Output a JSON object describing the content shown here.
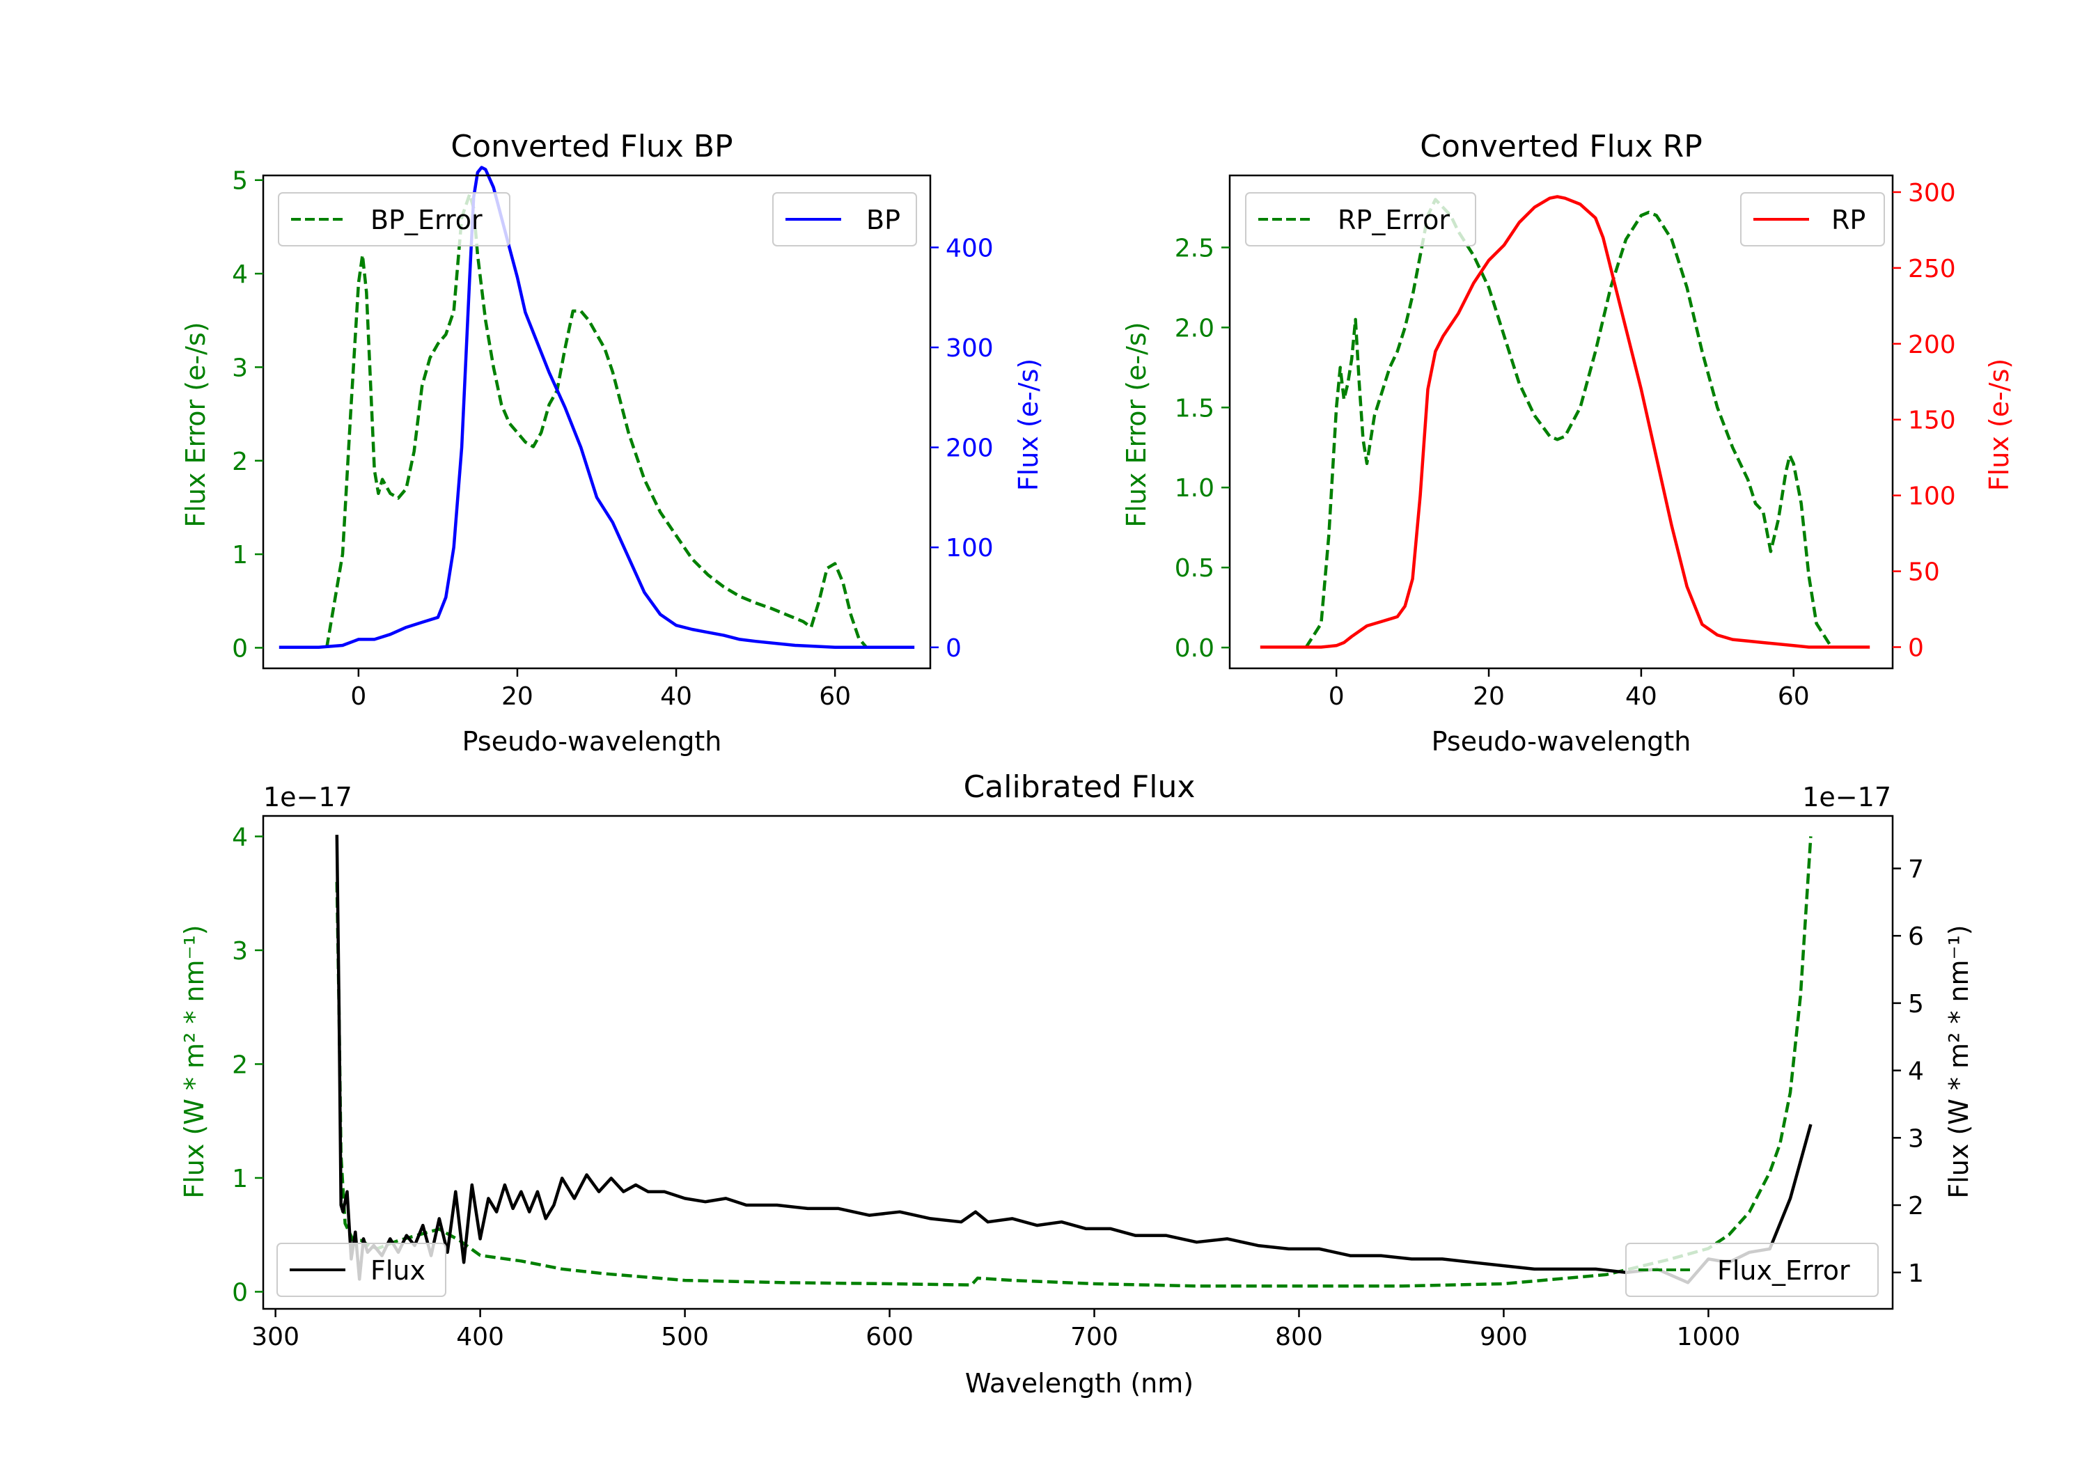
{
  "figure": {
    "background": "#ffffff"
  },
  "chart_data": [
    {
      "id": "bp",
      "type": "line",
      "title": "Converted Flux BP",
      "xlabel": "Pseudo-wavelength",
      "ylabel_left": "Flux Error (e-/s)",
      "ylabel_right": "Flux (e-/s)",
      "xlim": [
        -12,
        72
      ],
      "ylim_left": [
        -0.22,
        5.05
      ],
      "ylim_right": [
        -21,
        472
      ],
      "xticks": [
        0,
        20,
        40,
        60
      ],
      "yticks_left": [
        0,
        1,
        2,
        3,
        4,
        5
      ],
      "yticks_right": [
        0,
        100,
        200,
        300,
        400
      ],
      "left_axis_color": "#008000",
      "right_axis_color": "#0000ff",
      "series": [
        {
          "name": "BP_Error",
          "axis": "left",
          "color": "#008000",
          "dash": true,
          "x": [
            -4,
            -2,
            -1,
            0,
            0.5,
            1,
            2,
            2.5,
            3,
            4,
            5,
            6,
            7,
            8,
            9,
            10,
            11,
            12,
            13,
            14,
            14.5,
            15,
            16,
            17,
            18,
            19,
            20,
            21,
            22,
            23,
            24,
            25,
            26,
            27,
            28,
            29,
            30,
            31,
            32,
            34,
            36,
            38,
            40,
            42,
            44,
            46,
            48,
            50,
            52,
            54,
            56,
            57,
            58,
            59,
            60,
            61,
            62,
            63,
            64
          ],
          "y": [
            0,
            1.0,
            2.5,
            3.9,
            4.2,
            3.8,
            1.9,
            1.65,
            1.8,
            1.65,
            1.6,
            1.7,
            2.1,
            2.8,
            3.1,
            3.25,
            3.35,
            3.6,
            4.6,
            4.85,
            4.7,
            4.2,
            3.5,
            3.0,
            2.6,
            2.4,
            2.3,
            2.2,
            2.15,
            2.3,
            2.6,
            2.75,
            3.2,
            3.6,
            3.6,
            3.5,
            3.35,
            3.2,
            2.95,
            2.3,
            1.8,
            1.45,
            1.2,
            0.95,
            0.78,
            0.65,
            0.55,
            0.48,
            0.42,
            0.35,
            0.28,
            0.22,
            0.5,
            0.85,
            0.9,
            0.7,
            0.35,
            0.1,
            0
          ]
        },
        {
          "name": "BP",
          "axis": "right",
          "color": "#0000ff",
          "dash": false,
          "x": [
            -10,
            -5,
            -2,
            0,
            2,
            4,
            6,
            8,
            10,
            11,
            12,
            13,
            14,
            14.5,
            15,
            15.5,
            16,
            17,
            18,
            19,
            20,
            21,
            22,
            24,
            26,
            28,
            30,
            32,
            34,
            36,
            38,
            40,
            42,
            44,
            46,
            48,
            50,
            55,
            60,
            65,
            70
          ],
          "y": [
            0,
            0,
            2,
            8,
            8,
            13,
            20,
            25,
            30,
            50,
            100,
            200,
            370,
            450,
            475,
            480,
            478,
            460,
            430,
            400,
            370,
            335,
            315,
            275,
            240,
            200,
            150,
            125,
            90,
            55,
            33,
            22,
            18,
            15,
            12,
            8,
            6,
            2,
            0,
            0,
            0
          ]
        }
      ],
      "legend": [
        {
          "label": "BP_Error",
          "position": "upper-left"
        },
        {
          "label": "BP",
          "position": "upper-right"
        }
      ]
    },
    {
      "id": "rp",
      "type": "line",
      "title": "Converted Flux RP",
      "xlabel": "Pseudo-wavelength",
      "ylabel_left": "Flux Error (e-/s)",
      "ylabel_right": "Flux (e-/s)",
      "xlim": [
        -14,
        73
      ],
      "ylim_left": [
        -0.13,
        2.95
      ],
      "ylim_right": [
        -14,
        311
      ],
      "xticks": [
        0,
        20,
        40,
        60
      ],
      "yticks_left": [
        0.0,
        0.5,
        1.0,
        1.5,
        2.0,
        2.5
      ],
      "yticks_right": [
        0,
        50,
        100,
        150,
        200,
        250,
        300
      ],
      "left_axis_color": "#008000",
      "right_axis_color": "#ff0000",
      "series": [
        {
          "name": "RP_Error",
          "axis": "left",
          "color": "#008000",
          "dash": true,
          "x": [
            -4,
            -2,
            -1,
            0,
            0.5,
            1,
            1.5,
            2,
            2.5,
            3,
            3.5,
            4,
            5,
            6,
            7,
            8,
            9,
            10,
            11,
            12,
            13,
            14,
            15,
            16,
            18,
            20,
            22,
            24,
            26,
            28,
            29,
            30,
            32,
            34,
            36,
            38,
            40,
            41,
            42,
            44,
            46,
            48,
            50,
            52,
            54,
            55,
            56,
            57,
            58,
            59,
            59.5,
            60,
            61,
            62,
            63,
            65
          ],
          "y": [
            0,
            0.15,
            0.7,
            1.5,
            1.75,
            1.55,
            1.65,
            1.8,
            2.05,
            1.65,
            1.3,
            1.15,
            1.45,
            1.6,
            1.75,
            1.85,
            2.0,
            2.2,
            2.45,
            2.7,
            2.8,
            2.75,
            2.7,
            2.6,
            2.45,
            2.25,
            1.95,
            1.65,
            1.45,
            1.32,
            1.3,
            1.32,
            1.5,
            1.85,
            2.25,
            2.55,
            2.7,
            2.72,
            2.7,
            2.55,
            2.25,
            1.85,
            1.5,
            1.25,
            1.05,
            0.9,
            0.85,
            0.6,
            0.8,
            1.1,
            1.2,
            1.15,
            0.9,
            0.45,
            0.15,
            0
          ]
        },
        {
          "name": "RP",
          "axis": "right",
          "color": "#ff0000",
          "dash": false,
          "x": [
            -10,
            -2,
            0,
            1,
            2,
            4,
            6,
            8,
            9,
            10,
            11,
            11.5,
            12,
            13,
            14,
            16,
            18,
            20,
            22,
            24,
            26,
            28,
            29,
            30,
            32,
            34,
            35,
            36,
            38,
            40,
            42,
            44,
            46,
            48,
            50,
            52,
            54,
            56,
            60,
            62,
            64,
            70
          ],
          "y": [
            0,
            0,
            1,
            3,
            7,
            14,
            17,
            20,
            27,
            45,
            100,
            135,
            170,
            195,
            205,
            220,
            240,
            255,
            265,
            280,
            290,
            296,
            297,
            296,
            292,
            283,
            270,
            250,
            210,
            170,
            125,
            80,
            40,
            15,
            8,
            5,
            4,
            3,
            1,
            0,
            0,
            0
          ]
        }
      ],
      "legend": [
        {
          "label": "RP_Error",
          "position": "upper-left"
        },
        {
          "label": "RP",
          "position": "upper-right"
        }
      ]
    },
    {
      "id": "cal",
      "type": "line",
      "title": "Calibrated Flux",
      "xlabel": "Wavelength (nm)",
      "ylabel_left": "Flux (W * m² * nm⁻¹)",
      "ylabel_right": "Flux (W * m² * nm⁻¹)",
      "scale_left": "1e−17",
      "scale_right": "1e−17",
      "xlim": [
        294,
        1090
      ],
      "ylim_left": [
        -0.15,
        4.18
      ],
      "ylim_right": [
        0.46,
        7.78
      ],
      "xticks": [
        300,
        400,
        500,
        600,
        700,
        800,
        900,
        1000
      ],
      "yticks_left": [
        0,
        1,
        2,
        3,
        4
      ],
      "yticks_right": [
        1,
        2,
        3,
        4,
        5,
        6,
        7
      ],
      "left_axis_color": "#008000",
      "right_axis_color": "#000000",
      "series": [
        {
          "name": "Flux_Error",
          "axis": "left",
          "color": "#008000",
          "dash": true,
          "x": [
            330,
            331,
            332,
            334,
            338,
            342,
            346,
            350,
            360,
            370,
            380,
            390,
            400,
            420,
            440,
            460,
            500,
            550,
            600,
            640,
            643,
            660,
            700,
            750,
            800,
            850,
            900,
            950,
            980,
            1000,
            1010,
            1020,
            1030,
            1035,
            1040,
            1045,
            1050
          ],
          "y": [
            3.6,
            2.5,
            1.2,
            0.6,
            0.45,
            0.45,
            0.4,
            0.38,
            0.45,
            0.5,
            0.55,
            0.45,
            0.32,
            0.27,
            0.2,
            0.16,
            0.1,
            0.08,
            0.07,
            0.06,
            0.12,
            0.1,
            0.07,
            0.05,
            0.05,
            0.05,
            0.07,
            0.15,
            0.28,
            0.38,
            0.5,
            0.7,
            1.05,
            1.3,
            1.75,
            2.6,
            4.0
          ]
        },
        {
          "name": "Flux",
          "axis": "right",
          "color": "#000000",
          "dash": false,
          "x": [
            330,
            331,
            332,
            333,
            335,
            337,
            339,
            341,
            343,
            345,
            348,
            352,
            356,
            360,
            364,
            368,
            372,
            376,
            380,
            384,
            388,
            392,
            396,
            400,
            404,
            408,
            412,
            416,
            420,
            424,
            428,
            432,
            436,
            440,
            446,
            452,
            458,
            464,
            470,
            476,
            482,
            490,
            500,
            510,
            520,
            530,
            545,
            560,
            575,
            590,
            605,
            620,
            635,
            642,
            648,
            660,
            672,
            684,
            696,
            708,
            720,
            735,
            750,
            765,
            780,
            795,
            810,
            825,
            840,
            855,
            870,
            885,
            900,
            915,
            930,
            945,
            960,
            975,
            990,
            1000,
            1010,
            1020,
            1030,
            1040,
            1050
          ],
          "y": [
            7.5,
            5,
            2,
            1.9,
            2.2,
            1.2,
            1.6,
            0.9,
            1.5,
            1.3,
            1.4,
            1.25,
            1.5,
            1.3,
            1.55,
            1.4,
            1.7,
            1.25,
            1.8,
            1.3,
            2.2,
            1.15,
            2.3,
            1.5,
            2.1,
            1.9,
            2.3,
            1.95,
            2.2,
            1.9,
            2.2,
            1.8,
            2.0,
            2.4,
            2.1,
            2.45,
            2.2,
            2.4,
            2.2,
            2.3,
            2.2,
            2.2,
            2.1,
            2.05,
            2.1,
            2.0,
            2.0,
            1.95,
            1.95,
            1.85,
            1.9,
            1.8,
            1.75,
            1.9,
            1.75,
            1.8,
            1.7,
            1.75,
            1.65,
            1.65,
            1.55,
            1.55,
            1.45,
            1.5,
            1.4,
            1.35,
            1.35,
            1.25,
            1.25,
            1.2,
            1.2,
            1.15,
            1.1,
            1.05,
            1.05,
            1.05,
            1.0,
            1.05,
            0.85,
            1.2,
            1.15,
            1.3,
            1.35,
            2.1,
            3.2
          ]
        }
      ],
      "legend": [
        {
          "label": "Flux",
          "position": "lower-left"
        },
        {
          "label": "Flux_Error",
          "position": "lower-right"
        }
      ]
    }
  ]
}
